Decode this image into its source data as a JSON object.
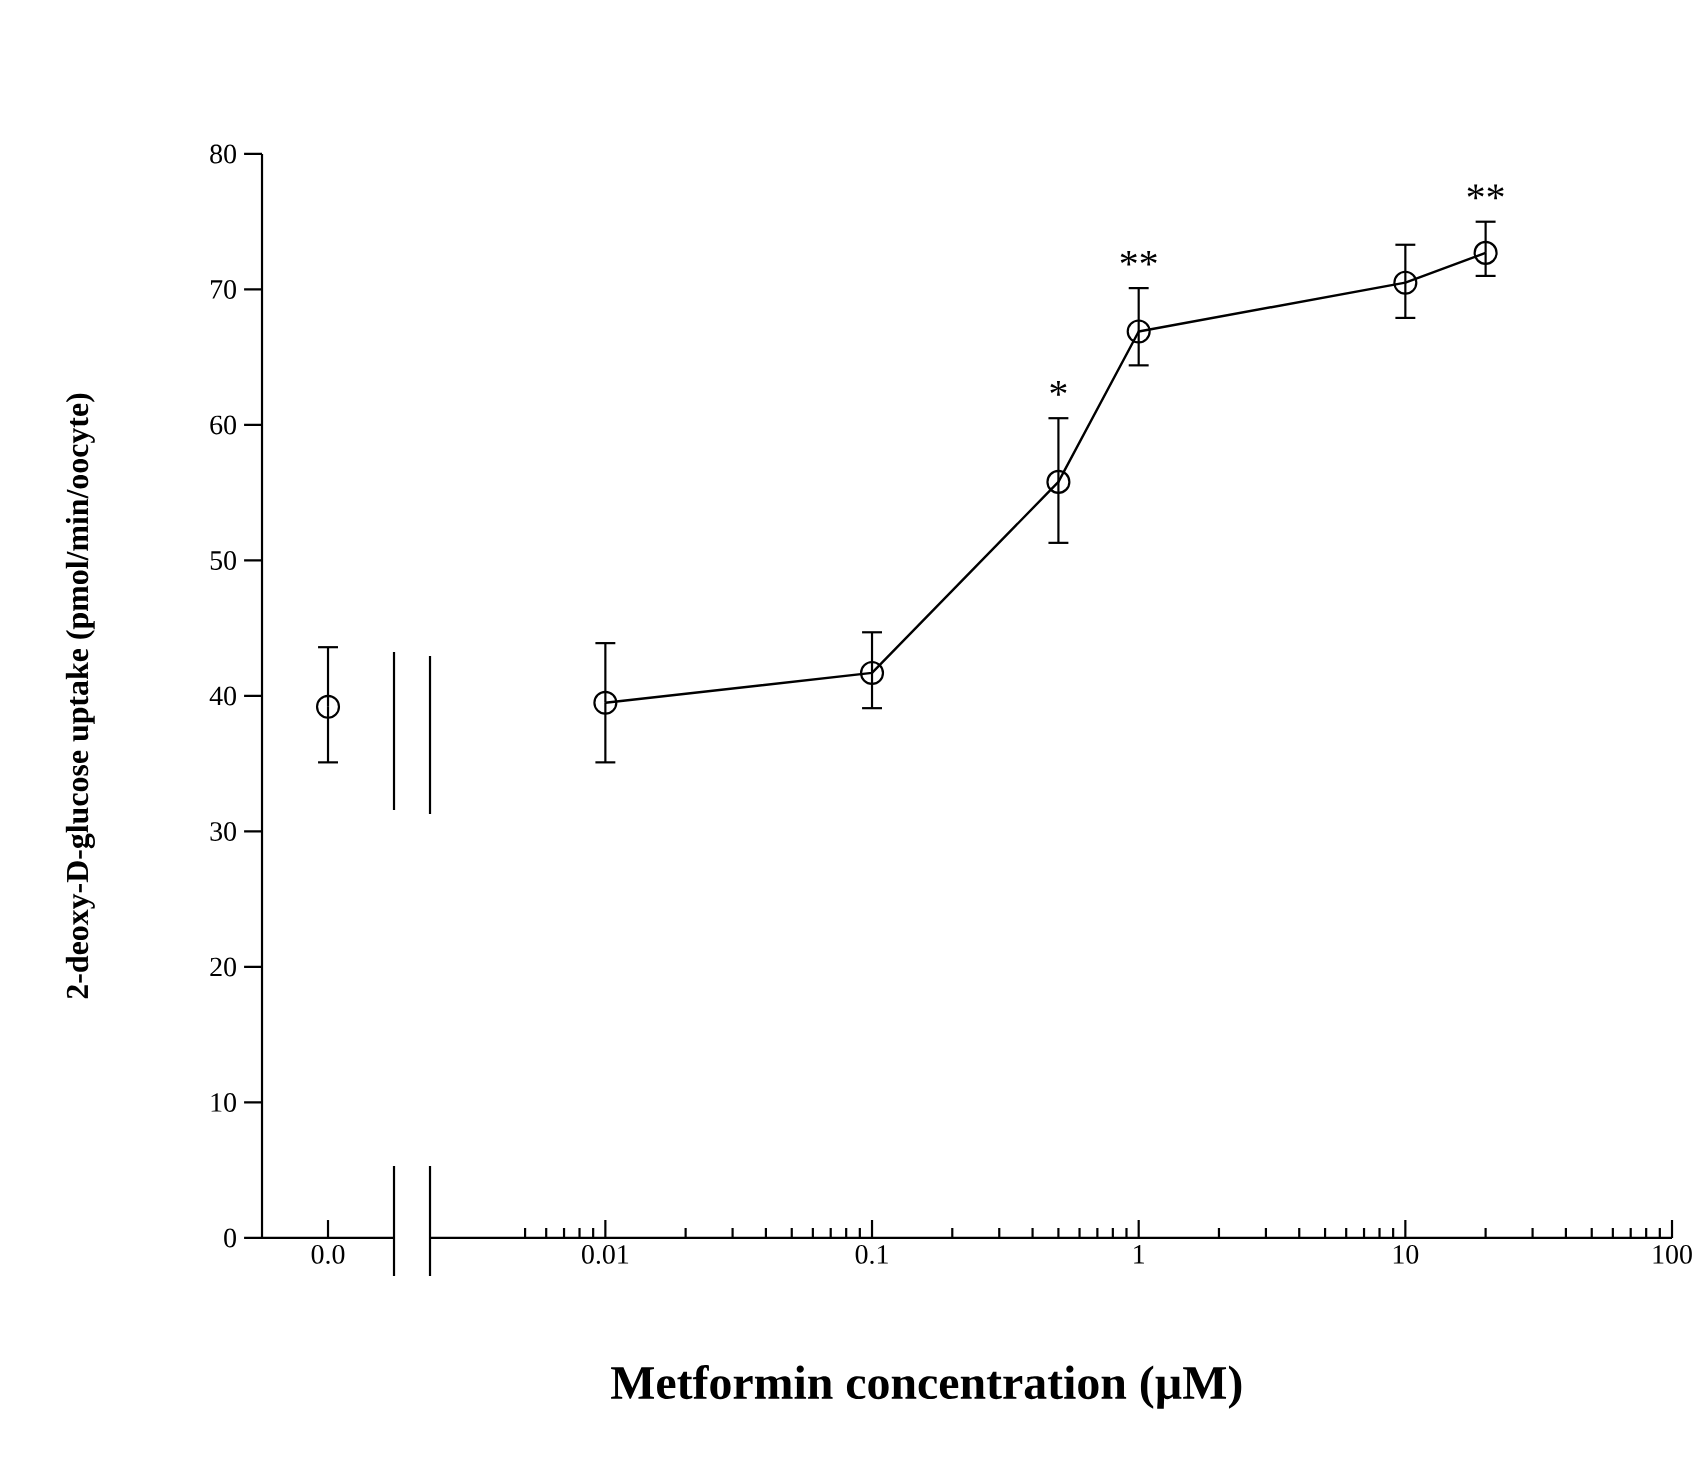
{
  "chart_data": [
    {
      "type": "line",
      "ylabel": "2-deoxy-D-glucose uptake (pmol/min/oocyte)",
      "categories": [
        "0.0"
      ],
      "series": [
        {
          "color": "#000000",
          "values": [
            39.2
          ],
          "errors": [
            [
              35.1,
              43.6
            ]
          ]
        }
      ],
      "ylim": [
        0,
        80
      ],
      "yticks": [
        0,
        10,
        20,
        30,
        40,
        50,
        60,
        70,
        80
      ],
      "marker": "circle",
      "line_style": "solid",
      "grid": false
    },
    {
      "type": "line",
      "xlabel": "Metformin concentration (µM)",
      "log": "x",
      "series": [
        {
          "color": "#000000",
          "x": [
            0.01,
            0.1,
            0.5,
            1,
            10,
            20
          ],
          "values": [
            39.5,
            41.7,
            55.8,
            66.9,
            70.5,
            72.7
          ],
          "errors": [
            [
              35.1,
              43.9
            ],
            [
              39.1,
              44.7
            ],
            [
              51.3,
              60.5
            ],
            [
              64.4,
              70.1
            ],
            [
              67.9,
              73.3
            ],
            [
              71.0,
              75.0
            ]
          ]
        }
      ],
      "xlim": [
        0.0022,
        100
      ],
      "xticks": [
        {
          "value": 0.005,
          "label": null
        },
        {
          "value": 0.006,
          "label": null
        },
        {
          "value": 0.007,
          "label": null
        },
        {
          "value": 0.008,
          "label": null
        },
        {
          "value": 0.009,
          "label": null
        },
        0.01,
        {
          "value": 0.02,
          "label": null
        },
        {
          "value": 0.03,
          "label": null
        },
        {
          "value": 0.04,
          "label": null
        },
        {
          "value": 0.05,
          "label": null
        },
        {
          "value": 0.06,
          "label": null
        },
        {
          "value": 0.07,
          "label": null
        },
        {
          "value": 0.08,
          "label": null
        },
        {
          "value": 0.09,
          "label": null
        },
        0.1,
        {
          "value": 0.2,
          "label": null
        },
        {
          "value": 0.3,
          "label": null
        },
        {
          "value": 0.4,
          "label": null
        },
        {
          "value": 0.5,
          "label": null
        },
        {
          "value": 0.6,
          "label": null
        },
        {
          "value": 0.7,
          "label": null
        },
        {
          "value": 0.8,
          "label": null
        },
        {
          "value": 0.9,
          "label": null
        },
        1,
        {
          "value": 2,
          "label": null
        },
        {
          "value": 3,
          "label": null
        },
        {
          "value": 4,
          "label": null
        },
        {
          "value": 5,
          "label": null
        },
        {
          "value": 6,
          "label": null
        },
        {
          "value": 7,
          "label": null
        },
        {
          "value": 8,
          "label": null
        },
        {
          "value": 9,
          "label": null
        },
        10,
        {
          "value": 20,
          "label": null
        },
        {
          "value": 30,
          "label": null
        },
        {
          "value": 40,
          "label": null
        },
        {
          "value": 50,
          "label": null
        },
        {
          "value": 60,
          "label": null
        },
        {
          "value": 70,
          "label": null
        },
        {
          "value": 80,
          "label": null
        },
        {
          "value": 90,
          "label": null
        },
        100
      ],
      "ylim": [
        0,
        80
      ],
      "tick_labels": "x",
      "marker": "circle",
      "line_style": "solid",
      "grid": false,
      "annotations": [
        {
          "text": "*",
          "x": 0.5,
          "y": 60.5
        },
        {
          "text": "**",
          "x": 1,
          "y": 70.1
        },
        {
          "text": "**",
          "x": 20,
          "y": 75.0
        }
      ]
    }
  ]
}
